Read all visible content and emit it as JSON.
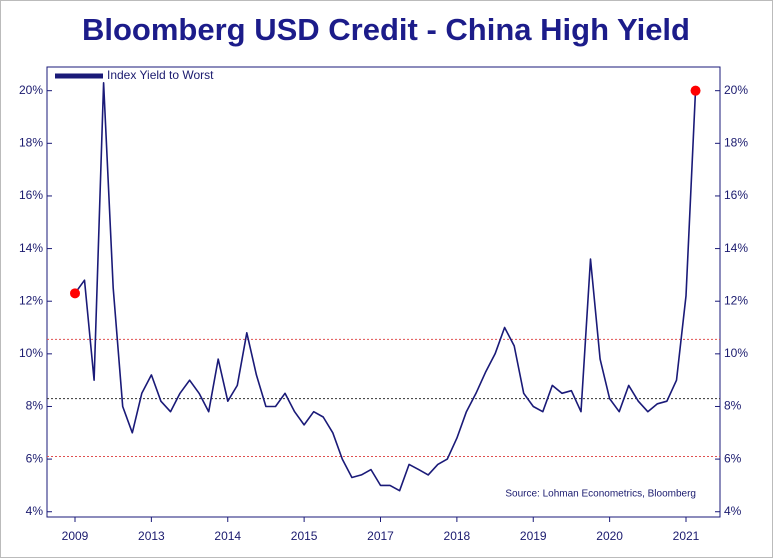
{
  "chart_data": {
    "type": "line",
    "title": "Bloomberg USD Credit - China High Yield",
    "source": "Source: Lohman Econometrics, Bloomberg",
    "categories": [
      "2009",
      null,
      null,
      null,
      null,
      null,
      null,
      null,
      "2013",
      null,
      null,
      null,
      null,
      null,
      null,
      null,
      "2014",
      null,
      null,
      null,
      null,
      null,
      null,
      null,
      "2015",
      null,
      null,
      null,
      null,
      null,
      null,
      null,
      "2017",
      null,
      null,
      null,
      null,
      null,
      null,
      null,
      "2018",
      null,
      null,
      null,
      null,
      null,
      null,
      null,
      "2019",
      null,
      null,
      null,
      null,
      null,
      null,
      null,
      "2020",
      null,
      null,
      null,
      null,
      null,
      null,
      null,
      "2021",
      null
    ],
    "series": [
      {
        "name": "Index Yield to Worst",
        "color": "#1a1a78",
        "values": [
          12.3,
          12.8,
          9.0,
          20.3,
          12.5,
          8.0,
          7.0,
          8.5,
          9.2,
          8.2,
          7.8,
          8.5,
          9.0,
          8.5,
          7.8,
          9.8,
          8.2,
          8.8,
          10.8,
          9.2,
          8.0,
          8.0,
          8.5,
          7.8,
          7.3,
          7.8,
          7.6,
          7.0,
          6.0,
          5.3,
          5.4,
          5.6,
          5.0,
          5.0,
          4.8,
          5.8,
          5.6,
          5.4,
          5.8,
          6.0,
          6.8,
          7.8,
          8.5,
          9.3,
          10.0,
          11.0,
          10.3,
          8.5,
          8.0,
          7.8,
          8.8,
          8.5,
          8.6,
          7.8,
          13.6,
          9.8,
          8.3,
          7.8,
          8.8,
          8.2,
          7.8,
          8.1,
          8.2,
          9.0,
          12.2,
          20.0
        ]
      }
    ],
    "endpoint_marker_color": "#ff0000",
    "reference_lines": [
      {
        "value": 10.55,
        "color": "#e05050"
      },
      {
        "value": 8.3,
        "color": "#333333"
      },
      {
        "value": 6.1,
        "color": "#e05050"
      }
    ],
    "ylim": [
      3.8,
      20.9
    ],
    "yticks": [
      {
        "value": 4,
        "label": "4%"
      },
      {
        "value": 6,
        "label": "6%"
      },
      {
        "value": 8,
        "label": "8%"
      },
      {
        "value": 10,
        "label": "10%"
      },
      {
        "value": 12,
        "label": "12%"
      },
      {
        "value": 14,
        "label": "14%"
      },
      {
        "value": 16,
        "label": "16%"
      },
      {
        "value": 18,
        "label": "18%"
      },
      {
        "value": 20,
        "label": "20%"
      }
    ],
    "legend": "top-left"
  }
}
